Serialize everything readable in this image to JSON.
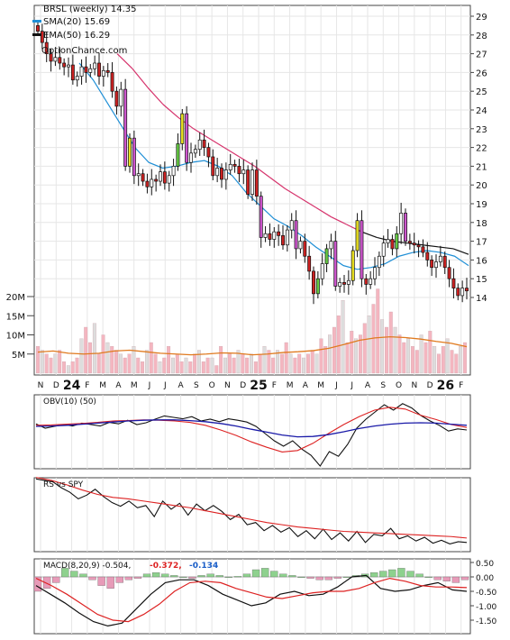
{
  "header": {
    "symbol_line": "BRSL (weekly) 14.35",
    "legend": [
      {
        "label": "SMA(20) 15.69",
        "color": "#1f8fd6"
      },
      {
        "label": "EMA(50) 16.29",
        "color": "#111111"
      }
    ],
    "watermark": "OptionChance.com"
  },
  "colors": {
    "up": "#ffffff",
    "down": "#cc2222",
    "strong_down": "#cc55cc",
    "strong_up": "#e8e020",
    "green_body": "#66cc44",
    "sma": "#1f8fd6",
    "ema": "#111111",
    "ema_down": "#d6336c",
    "ema_up": "#55cc44",
    "vol_up": "#dddddd",
    "vol_down": "#f4b6c0",
    "vol_ma": "#e07a1f",
    "obv": "#111111",
    "obv_ma": "#1a1aa8",
    "obv_ma2": "#dd2222",
    "rs": "#111111",
    "rs_ma": "#dd2222",
    "macd": "#111111",
    "signal": "#dd2222",
    "hist_pos": "#8ed18e",
    "hist_neg": "#e79bb8"
  },
  "x_axis": {
    "month_labels": [
      "N",
      "D",
      "24",
      "F",
      "M",
      "A",
      "M",
      "J",
      "J",
      "A",
      "S",
      "O",
      "N",
      "D",
      "25",
      "F",
      "M",
      "A",
      "M",
      "J",
      "J",
      "A",
      "S",
      "O",
      "N",
      "D",
      "26",
      "F"
    ],
    "bold_labels": [
      "24",
      "25",
      "26"
    ]
  },
  "price_axis": {
    "ticks": [
      "29",
      "28",
      "27",
      "26",
      "25",
      "24",
      "23",
      "22",
      "21",
      "20",
      "19",
      "18",
      "17",
      "16",
      "15",
      "14"
    ]
  },
  "volume_axis": {
    "ticks": [
      "20M",
      "15M",
      "10M",
      "5M"
    ]
  },
  "obv_panel": {
    "label": "OBV(10) (50)"
  },
  "rs_panel": {
    "label": "RS vs SPY"
  },
  "macd_panel": {
    "label": "MACD(8,20,9) -0.504,",
    "value2": "-0.372,",
    "value2_color": "#dd2222",
    "value3": "-0.134",
    "value3_color": "#1a5ec8",
    "ticks": [
      "0.50",
      "0.00",
      "-0.50",
      "-1.00",
      "-1.50"
    ]
  },
  "chart_data": [
    {
      "type": "candlestick",
      "title": "BRSL (weekly) 14.35",
      "x_range": [
        "2023-11",
        "2026-02"
      ],
      "ylim": [
        13.5,
        29.2
      ],
      "series": [
        {
          "name": "BRSL",
          "values": [
            28.2,
            27.6,
            27.0,
            26.6,
            26.8,
            26.5,
            26.3,
            26.4,
            25.6,
            25.8,
            26.3,
            26.0,
            26.2,
            26.5,
            25.8,
            26.1,
            26.0,
            25.0,
            24.2,
            25.1,
            21.0,
            22.5,
            20.5,
            20.6,
            20.2,
            19.9,
            20.3,
            20.2,
            20.7,
            20.1,
            20.5,
            21.0,
            22.2,
            23.8,
            21.2,
            21.7,
            21.9,
            22.4,
            22.0,
            21.5,
            20.5,
            20.9,
            20.3,
            20.8,
            21.1,
            21.0,
            20.6,
            20.8,
            19.5,
            20.8,
            19.4,
            17.2,
            17.4,
            17.1,
            17.5,
            17.3,
            16.8,
            17.6,
            18.1,
            16.6,
            17.0,
            16.2,
            15.4,
            14.2,
            15.0,
            15.8,
            16.6,
            17.0,
            14.6,
            14.8,
            14.7,
            14.9,
            16.5,
            18.1,
            15.0,
            14.7,
            15.0,
            15.6,
            16.2,
            16.9,
            17.1,
            16.6,
            17.4,
            18.5,
            17.0,
            16.9,
            16.8,
            16.7,
            16.4,
            16.0,
            15.6,
            15.9,
            16.2,
            15.6,
            15.0,
            14.5,
            14.1,
            14.5,
            14.35
          ]
        },
        {
          "name": "SMA(20) 15.69",
          "values": [
            26.5,
            25.6,
            24.4,
            23.2,
            22.0,
            21.2,
            20.9,
            21.0,
            21.2,
            21.3,
            21.0,
            20.5,
            19.6,
            18.9,
            18.2,
            17.8,
            17.3,
            16.7,
            16.2,
            15.7,
            15.5,
            15.6,
            15.8,
            16.2,
            16.4,
            16.5,
            16.4,
            16.2,
            15.7
          ]
        },
        {
          "name": "EMA(50) 16.29",
          "values": [
            27.0,
            26.2,
            25.2,
            24.3,
            23.6,
            23.0,
            22.5,
            22.0,
            21.5,
            21.0,
            20.4,
            19.8,
            19.3,
            18.8,
            18.3,
            17.9,
            17.5,
            17.2,
            17.0,
            16.9,
            16.8,
            16.7,
            16.6,
            16.3
          ]
        }
      ]
    },
    {
      "type": "bar",
      "title": "Volume",
      "ylim": [
        0,
        22
      ],
      "ylabel": "M",
      "series": [
        {
          "name": "Volume",
          "values": [
            7,
            6,
            5,
            4,
            5,
            6,
            3,
            2,
            3,
            4,
            9,
            12,
            8,
            13,
            5,
            10,
            8,
            7,
            6,
            5,
            4,
            5,
            7,
            4,
            3,
            6,
            8,
            5,
            3,
            4,
            7,
            4,
            5,
            3,
            4,
            3,
            5,
            6,
            3,
            4,
            4,
            2,
            7,
            4,
            5,
            4,
            6,
            5,
            4,
            5,
            3,
            5,
            7,
            6,
            4,
            6,
            5,
            8,
            5,
            4,
            5,
            4,
            5,
            6,
            5,
            9,
            7,
            10,
            12,
            15,
            19,
            8,
            11,
            9,
            10,
            13,
            15,
            18,
            22,
            14,
            12,
            16,
            12,
            10,
            8,
            9,
            7,
            6,
            10,
            8,
            11,
            7,
            5,
            7,
            9,
            6,
            5,
            7,
            8
          ]
        },
        {
          "name": "Volume MA",
          "values": [
            5.5,
            5.8,
            5.2,
            5.0,
            5.2,
            5.8,
            6.0,
            5.6,
            5.2,
            5.0,
            4.8,
            5.0,
            5.3,
            5.2,
            4.8,
            5.0,
            5.4,
            5.6,
            5.9,
            6.5,
            7.5,
            8.6,
            9.2,
            9.5,
            9.3,
            8.9,
            8.3,
            7.8,
            6.9
          ]
        }
      ]
    },
    {
      "type": "line",
      "title": "OBV(10) (50)",
      "ylim": [
        -10,
        10
      ],
      "series": [
        {
          "name": "OBV",
          "values": [
            2.2,
            1.0,
            1.5,
            2.0,
            1.6,
            2.4,
            2.0,
            1.6,
            2.6,
            2.2,
            3.2,
            2.0,
            2.5,
            3.5,
            4.4,
            4.0,
            3.6,
            4.2,
            3.0,
            3.5,
            2.8,
            3.6,
            3.2,
            2.7,
            1.5,
            -0.5,
            -2.5,
            -4.0,
            -2.5,
            -4.8,
            -6.5,
            -9.5,
            -5.5,
            -6.8,
            -3.5,
            1.0,
            3.5,
            5.5,
            7.5,
            6.0,
            7.8,
            6.6,
            4.5,
            3.0,
            1.8,
            0.2,
            0.8,
            0.5
          ]
        },
        {
          "name": "OBV MA 10",
          "values": [
            1.8,
            1.9,
            2.1,
            2.3,
            2.6,
            3.0,
            3.1,
            3.3,
            3.2,
            3.0,
            2.6,
            1.8,
            0.5,
            -1.0,
            -2.8,
            -4.3,
            -5.6,
            -5.2,
            -3.2,
            -0.5,
            2.0,
            4.2,
            6.0,
            6.8,
            6.3,
            4.6,
            3.4,
            2.0,
            1.2
          ]
        },
        {
          "name": "OBV MA 50",
          "values": [
            1.5,
            1.6,
            1.8,
            2.1,
            2.4,
            2.7,
            3.0,
            3.2,
            3.3,
            3.3,
            3.1,
            2.8,
            2.3,
            1.6,
            0.7,
            -0.1,
            -0.9,
            -1.4,
            -1.3,
            -0.8,
            0.0,
            0.9,
            1.6,
            2.1,
            2.4,
            2.5,
            2.4,
            2.1,
            1.8
          ]
        }
      ]
    },
    {
      "type": "line",
      "title": "RS vs SPY",
      "ylim": [
        0,
        10
      ],
      "series": [
        {
          "name": "RS",
          "values": [
            9.6,
            9.4,
            9.2,
            8.4,
            7.8,
            6.9,
            7.4,
            8.2,
            7.2,
            6.4,
            5.9,
            6.6,
            5.7,
            6.0,
            4.5,
            6.6,
            5.5,
            6.3,
            4.7,
            6.2,
            5.3,
            6.0,
            5.2,
            4.1,
            4.8,
            3.4,
            3.7,
            2.6,
            3.3,
            2.4,
            3.0,
            1.8,
            2.6,
            1.5,
            2.8,
            1.4,
            2.3,
            1.2,
            2.5,
            1.0,
            2.1,
            1.9,
            2.9,
            1.5,
            1.9,
            1.2,
            1.7,
            0.9,
            1.3,
            0.8,
            1.1,
            1.0
          ]
        },
        {
          "name": "RS MA",
          "values": [
            9.8,
            9.4,
            8.8,
            8.1,
            7.5,
            7.1,
            6.9,
            6.6,
            6.3,
            6.0,
            5.7,
            5.3,
            4.9,
            4.5,
            4.1,
            3.7,
            3.4,
            3.1,
            2.9,
            2.7,
            2.5,
            2.4,
            2.3,
            2.2,
            2.1,
            2.0,
            1.9,
            1.8,
            1.6
          ]
        }
      ]
    },
    {
      "type": "bar",
      "title": "MACD(8,20,9) -0.504,",
      "ylim": [
        -1.75,
        0.6
      ],
      "series": [
        {
          "name": "Histogram",
          "values": [
            -0.5,
            -0.4,
            -0.2,
            0.3,
            0.2,
            0.1,
            -0.1,
            -0.3,
            -0.4,
            -0.2,
            -0.1,
            -0.05,
            0.1,
            0.15,
            0.1,
            0.05,
            0.0,
            -0.05,
            0.05,
            0.1,
            0.05,
            0.0,
            0.02,
            0.1,
            0.25,
            0.3,
            0.2,
            0.1,
            0.05,
            0.0,
            -0.05,
            -0.1,
            -0.1,
            -0.05,
            0.0,
            0.05,
            0.1,
            0.15,
            0.2,
            0.25,
            0.3,
            0.2,
            0.1,
            0.0,
            -0.1,
            -0.15,
            -0.2,
            -0.1
          ]
        },
        {
          "name": "MACD",
          "values": [
            -0.3,
            -0.6,
            -0.9,
            -1.25,
            -1.55,
            -1.7,
            -1.6,
            -1.1,
            -0.6,
            -0.2,
            -0.1,
            -0.1,
            -0.3,
            -0.6,
            -0.8,
            -1.0,
            -0.9,
            -0.6,
            -0.5,
            -0.65,
            -0.6,
            -0.35,
            0.0,
            0.05,
            -0.4,
            -0.5,
            -0.45,
            -0.3,
            -0.2,
            -0.45,
            -0.5
          ]
        },
        {
          "name": "Signal",
          "values": [
            -0.05,
            -0.3,
            -0.6,
            -0.95,
            -1.3,
            -1.5,
            -1.55,
            -1.3,
            -0.95,
            -0.5,
            -0.2,
            -0.15,
            -0.2,
            -0.4,
            -0.55,
            -0.7,
            -0.75,
            -0.65,
            -0.55,
            -0.5,
            -0.5,
            -0.4,
            -0.2,
            -0.05,
            -0.15,
            -0.3,
            -0.35,
            -0.35,
            -0.37
          ]
        }
      ]
    }
  ]
}
